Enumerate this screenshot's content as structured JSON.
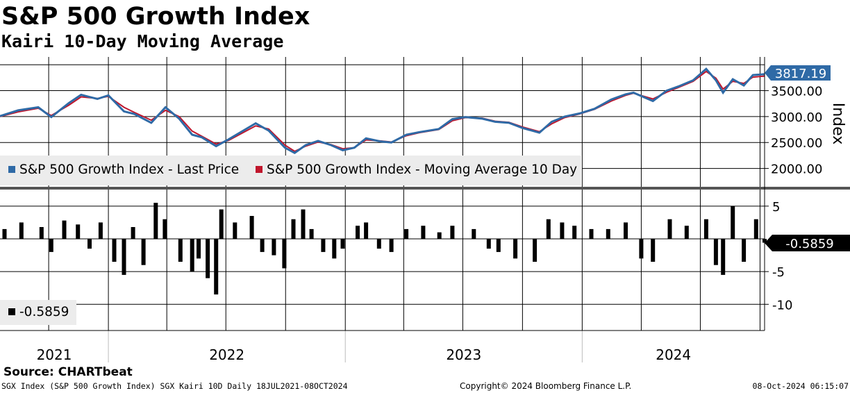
{
  "title": "S&P 500 Growth Index",
  "subtitle": "Kairi 10-Day Moving Average",
  "source": "Source: CHARTbeat",
  "footer": {
    "left": "SGX Index (S&P 500 Growth Index) SGX Kairi 10D  Daily 18JUL2021-08OCT2024",
    "center": "Copyright© 2024 Bloomberg Finance L.P.",
    "right": "08-Oct-2024 06:15:07"
  },
  "colors": {
    "price": "#2f6aa6",
    "moving_average": "#c0162c",
    "kairi": "#000000",
    "price_label_bg": "#2f6aa6",
    "kairi_label_bg": "#000000"
  },
  "chart_data": [
    {
      "type": "line",
      "y_axis_label": "Index",
      "ylim": [
        1700,
        4150
      ],
      "y_ticks": [
        "3500.00",
        "3000.00",
        "2500.00",
        "2000.00"
      ],
      "y_tick_values": [
        3500,
        3000,
        2500,
        2000
      ],
      "x_range": [
        "2021-07-18",
        "2024-10-08"
      ],
      "last_value_label": "3817.19",
      "legend_placement": "bottom-left",
      "series": [
        {
          "name": "S&P 500 Growth Index - Last Price",
          "color": "#2f6aa6",
          "x": [
            "2021-07-18",
            "2021-08-15",
            "2021-09-15",
            "2021-10-05",
            "2021-11-01",
            "2021-11-20",
            "2021-12-15",
            "2022-01-01",
            "2022-01-25",
            "2022-02-10",
            "2022-03-08",
            "2022-03-30",
            "2022-04-20",
            "2022-05-10",
            "2022-05-25",
            "2022-06-16",
            "2022-07-05",
            "2022-08-16",
            "2022-09-05",
            "2022-09-30",
            "2022-10-15",
            "2022-11-01",
            "2022-11-20",
            "2022-12-10",
            "2022-12-28",
            "2023-01-15",
            "2023-02-02",
            "2023-02-25",
            "2023-03-13",
            "2023-04-05",
            "2023-04-25",
            "2023-05-25",
            "2023-06-15",
            "2023-07-05",
            "2023-07-31",
            "2023-08-20",
            "2023-09-10",
            "2023-10-01",
            "2023-10-27",
            "2023-11-15",
            "2023-12-05",
            "2023-12-28",
            "2024-01-20",
            "2024-02-15",
            "2024-03-08",
            "2024-03-20",
            "2024-04-19",
            "2024-05-10",
            "2024-05-28",
            "2024-06-20",
            "2024-07-10",
            "2024-07-25",
            "2024-08-05",
            "2024-08-20",
            "2024-09-06",
            "2024-09-20",
            "2024-10-08"
          ],
          "values": [
            3010,
            3120,
            3180,
            2990,
            3260,
            3420,
            3340,
            3410,
            3100,
            3050,
            2880,
            3180,
            2960,
            2650,
            2600,
            2430,
            2560,
            2870,
            2730,
            2400,
            2300,
            2450,
            2530,
            2450,
            2350,
            2400,
            2580,
            2520,
            2500,
            2650,
            2700,
            2760,
            2950,
            2990,
            2960,
            2900,
            2880,
            2780,
            2690,
            2900,
            3000,
            3060,
            3150,
            3330,
            3430,
            3460,
            3300,
            3500,
            3580,
            3700,
            3920,
            3700,
            3460,
            3720,
            3600,
            3800,
            3817
          ]
        },
        {
          "name": "S&P 500 Growth Index - Moving Average 10 Day",
          "color": "#c0162c",
          "x": [
            "2021-07-18",
            "2021-08-15",
            "2021-09-15",
            "2021-10-05",
            "2021-11-01",
            "2021-11-20",
            "2021-12-15",
            "2022-01-01",
            "2022-01-25",
            "2022-02-10",
            "2022-03-08",
            "2022-03-30",
            "2022-04-20",
            "2022-05-10",
            "2022-05-25",
            "2022-06-16",
            "2022-07-05",
            "2022-08-16",
            "2022-09-05",
            "2022-09-30",
            "2022-10-15",
            "2022-11-01",
            "2022-11-20",
            "2022-12-10",
            "2022-12-28",
            "2023-01-15",
            "2023-02-02",
            "2023-02-25",
            "2023-03-13",
            "2023-04-05",
            "2023-04-25",
            "2023-05-25",
            "2023-06-15",
            "2023-07-05",
            "2023-07-31",
            "2023-08-20",
            "2023-09-10",
            "2023-10-01",
            "2023-10-27",
            "2023-11-15",
            "2023-12-05",
            "2023-12-28",
            "2024-01-20",
            "2024-02-15",
            "2024-03-08",
            "2024-03-20",
            "2024-04-19",
            "2024-05-10",
            "2024-05-28",
            "2024-06-20",
            "2024-07-10",
            "2024-07-25",
            "2024-08-05",
            "2024-08-20",
            "2024-09-06",
            "2024-09-20",
            "2024-10-08"
          ],
          "values": [
            3000,
            3090,
            3160,
            3020,
            3220,
            3380,
            3350,
            3390,
            3180,
            3080,
            2930,
            3120,
            3000,
            2720,
            2620,
            2470,
            2540,
            2820,
            2760,
            2450,
            2330,
            2430,
            2510,
            2460,
            2380,
            2400,
            2550,
            2530,
            2510,
            2630,
            2690,
            2750,
            2920,
            2980,
            2970,
            2910,
            2890,
            2800,
            2710,
            2860,
            2980,
            3050,
            3140,
            3300,
            3410,
            3450,
            3340,
            3470,
            3560,
            3680,
            3870,
            3740,
            3530,
            3680,
            3640,
            3760,
            3780
          ]
        }
      ]
    },
    {
      "type": "bar",
      "ylim": [
        -14,
        7
      ],
      "y_ticks": [
        "5",
        "-5",
        "-10"
      ],
      "y_tick_values": [
        5,
        -5,
        -10
      ],
      "x_range": [
        "2021-07-18",
        "2024-10-08"
      ],
      "last_value_label": "-0.5859",
      "legend_placement": "bottom-left",
      "series": [
        {
          "name": "-0.5859",
          "color": "#000000",
          "x": [
            "2021-07-25",
            "2021-08-20",
            "2021-09-20",
            "2021-10-05",
            "2021-10-25",
            "2021-11-15",
            "2021-12-03",
            "2021-12-20",
            "2022-01-10",
            "2022-01-25",
            "2022-02-08",
            "2022-02-24",
            "2022-03-15",
            "2022-03-29",
            "2022-04-22",
            "2022-05-10",
            "2022-05-20",
            "2022-06-03",
            "2022-06-16",
            "2022-06-24",
            "2022-07-15",
            "2022-08-10",
            "2022-08-26",
            "2022-09-13",
            "2022-09-29",
            "2022-10-13",
            "2022-10-28",
            "2022-11-10",
            "2022-11-28",
            "2022-12-15",
            "2022-12-28",
            "2023-01-20",
            "2023-02-02",
            "2023-02-22",
            "2023-03-13",
            "2023-04-05",
            "2023-05-01",
            "2023-05-26",
            "2023-06-15",
            "2023-07-18",
            "2023-08-10",
            "2023-08-25",
            "2023-09-20",
            "2023-10-20",
            "2023-11-10",
            "2023-12-01",
            "2023-12-20",
            "2024-01-15",
            "2024-02-10",
            "2024-03-08",
            "2024-04-01",
            "2024-04-19",
            "2024-05-15",
            "2024-06-10",
            "2024-07-10",
            "2024-07-25",
            "2024-08-05",
            "2024-08-20",
            "2024-09-06",
            "2024-09-25",
            "2024-10-08"
          ],
          "values": [
            1.5,
            2.5,
            1.8,
            -2.0,
            2.8,
            2.2,
            -1.5,
            2.5,
            -3.5,
            -5.5,
            1.8,
            -4.0,
            5.5,
            3.0,
            -3.5,
            -5.0,
            -3.0,
            -6.0,
            -8.5,
            4.5,
            2.5,
            3.5,
            -2.0,
            -2.5,
            -4.5,
            3.0,
            4.5,
            1.5,
            -2.0,
            -3.0,
            -1.5,
            2.0,
            2.5,
            -1.5,
            -2.0,
            1.5,
            2.0,
            1.0,
            2.0,
            1.5,
            -1.5,
            -2.0,
            -3.0,
            -3.5,
            3.0,
            2.5,
            2.0,
            1.5,
            1.5,
            2.5,
            -3.0,
            -3.5,
            3.0,
            2.0,
            3.0,
            -4.0,
            -5.5,
            5.0,
            -3.5,
            3.0,
            -0.5859
          ]
        }
      ]
    }
  ],
  "x_axis": {
    "labels": [
      "2021",
      "2022",
      "2023",
      "2024"
    ]
  }
}
